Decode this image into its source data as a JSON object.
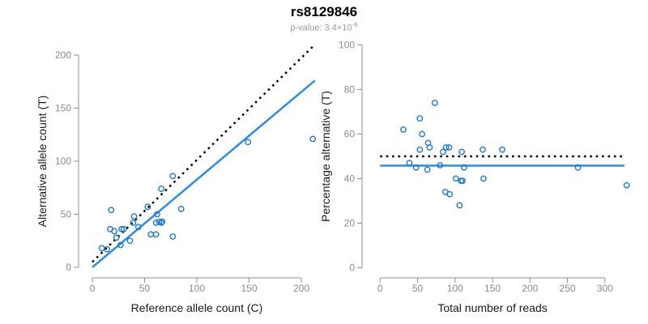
{
  "header": {
    "title": "rs8129846",
    "subtitle_prefix": "p-value: 3.4×10",
    "subtitle_exponent": "-6"
  },
  "colors": {
    "point": "#1c78d2",
    "fit_line": "#2b8cea",
    "expected_line": "#000000",
    "axis": "#8f8f8f",
    "tick_label": "#8b8b8b",
    "axis_title": "#1a1a1a",
    "title": "#000000",
    "subtitle": "#9a9a9a",
    "background": "#ffffff"
  },
  "chart_data": [
    {
      "type": "scatter",
      "title": "rs8129846",
      "subtitle": "p-value: 3.4×10-6",
      "xlabel": "Reference allele count (C)",
      "ylabel": "Alternative allele count (T)",
      "xlim": [
        0,
        215
      ],
      "ylim": [
        0,
        210
      ],
      "xticks": [
        0,
        50,
        100,
        150,
        200
      ],
      "yticks": [
        0,
        50,
        100,
        150,
        200
      ],
      "grid": false,
      "points": [
        [
          9,
          18
        ],
        [
          14,
          17
        ],
        [
          17,
          36
        ],
        [
          18,
          54
        ],
        [
          21,
          34
        ],
        [
          23,
          28
        ],
        [
          27,
          21
        ],
        [
          28,
          36
        ],
        [
          30,
          36
        ],
        [
          36,
          25
        ],
        [
          39,
          42
        ],
        [
          40,
          48
        ],
        [
          44,
          38
        ],
        [
          53,
          57
        ],
        [
          56,
          31
        ],
        [
          61,
          31
        ],
        [
          61,
          42
        ],
        [
          62,
          50
        ],
        [
          64,
          43
        ],
        [
          66,
          42
        ],
        [
          67,
          43
        ],
        [
          66,
          74
        ],
        [
          77,
          29
        ],
        [
          77,
          86
        ],
        [
          85,
          55
        ],
        [
          149,
          118
        ],
        [
          211,
          121
        ]
      ],
      "lines": [
        {
          "name": "expected-50pct-line",
          "style": "dotted",
          "color": "#000000",
          "x": [
            0,
            211
          ],
          "y": [
            5,
            208
          ]
        },
        {
          "name": "fitted-proportion-line",
          "style": "solid",
          "color": "#2b8cea",
          "x": [
            0,
            213
          ],
          "y": [
            0,
            176
          ]
        }
      ]
    },
    {
      "type": "scatter",
      "xlabel": "Total number of reads",
      "ylabel": "Percentage alternative (T)",
      "xlim": [
        0,
        335
      ],
      "ylim": [
        0,
        100
      ],
      "xticks": [
        0,
        50,
        100,
        150,
        200,
        250,
        300
      ],
      "yticks": [
        0,
        20,
        40,
        60,
        80,
        100
      ],
      "grid": false,
      "points": [
        [
          31,
          62
        ],
        [
          39,
          47
        ],
        [
          48,
          45
        ],
        [
          53,
          53
        ],
        [
          53,
          67
        ],
        [
          56,
          60
        ],
        [
          63,
          44
        ],
        [
          64,
          56
        ],
        [
          66,
          54
        ],
        [
          73,
          74
        ],
        [
          80,
          46
        ],
        [
          84,
          52
        ],
        [
          87,
          34
        ],
        [
          88,
          54
        ],
        [
          92,
          54
        ],
        [
          93,
          33
        ],
        [
          101,
          40
        ],
        [
          106,
          28
        ],
        [
          108,
          39
        ],
        [
          110,
          39
        ],
        [
          109,
          52
        ],
        [
          112,
          45
        ],
        [
          137,
          53
        ],
        [
          138,
          40
        ],
        [
          163,
          53
        ],
        [
          264,
          45
        ],
        [
          329,
          37
        ]
      ],
      "lines": [
        {
          "name": "expected-50pct-line",
          "style": "dotted",
          "color": "#000000",
          "x": [
            0,
            326
          ],
          "y": [
            50,
            50
          ]
        },
        {
          "name": "fitted-percentage-line",
          "style": "solid",
          "color": "#2b8cea",
          "x": [
            0,
            326
          ],
          "y": [
            45.8,
            45.8
          ]
        }
      ]
    }
  ]
}
